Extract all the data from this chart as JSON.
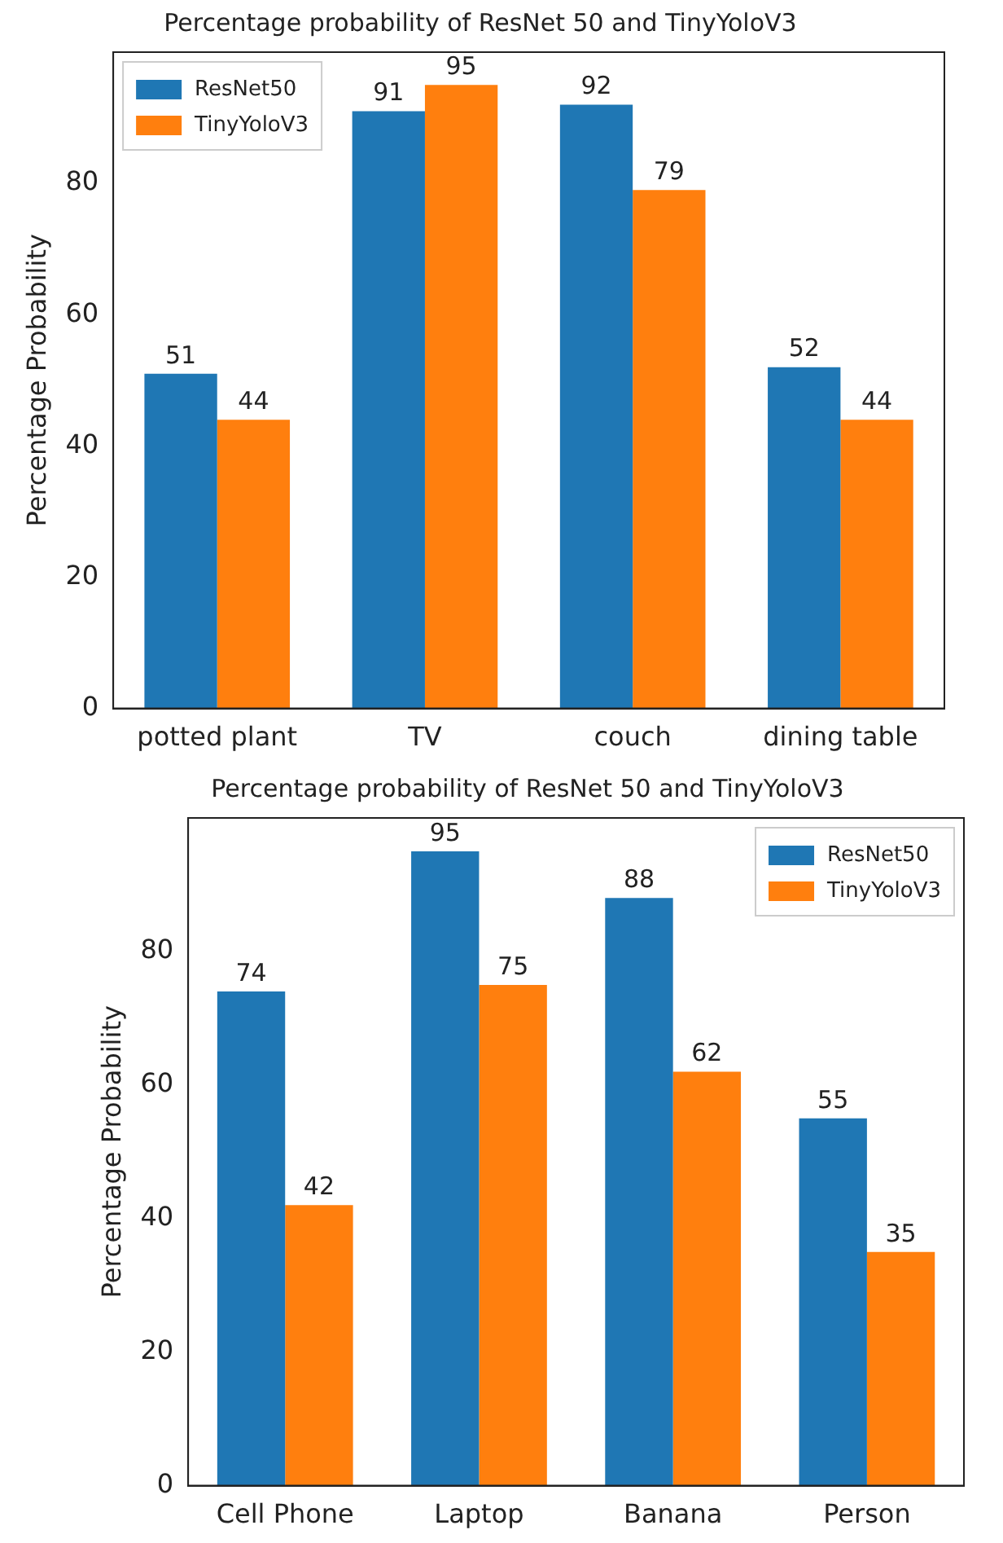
{
  "chart_data": [
    {
      "type": "bar",
      "title": "Percentage probability of ResNet 50 and TinyYoloV3",
      "ylabel": "Percentage Probability",
      "categories": [
        "potted plant",
        "TV",
        "couch",
        "dining table"
      ],
      "series": [
        {
          "name": "ResNet50",
          "color": "#1f77b4",
          "values": [
            51,
            91,
            92,
            52
          ]
        },
        {
          "name": "TinyYoloV3",
          "color": "#ff7f0e",
          "values": [
            44,
            95,
            79,
            44
          ]
        }
      ],
      "ylim": [
        0,
        100
      ],
      "yticks": [
        0,
        20,
        40,
        60,
        80
      ],
      "data_labels": true,
      "legend": "top left"
    },
    {
      "type": "bar",
      "title": "Percentage probability of ResNet 50 and TinyYoloV3",
      "ylabel": "Percentage Probability",
      "categories": [
        "Cell Phone",
        "Laptop",
        "Banana",
        "Person"
      ],
      "series": [
        {
          "name": "ResNet50",
          "color": "#1f77b4",
          "values": [
            74,
            95,
            88,
            55
          ]
        },
        {
          "name": "TinyYoloV3",
          "color": "#ff7f0e",
          "values": [
            42,
            75,
            62,
            35
          ]
        }
      ],
      "ylim": [
        0,
        100
      ],
      "yticks": [
        0,
        20,
        40,
        60,
        80
      ],
      "data_labels": true,
      "legend": "top right"
    }
  ]
}
